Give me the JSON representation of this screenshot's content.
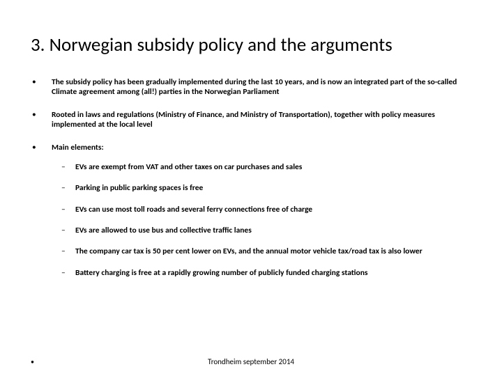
{
  "background_color": "#ffffff",
  "text_color": "#000000",
  "font_family": "Calibri, Arial, sans-serif",
  "title": {
    "text": "3. Norwegian subsidy policy and the arguments",
    "fontsize": 27,
    "weight": 400
  },
  "bullets": {
    "marker": "•",
    "fontsize": 11.5,
    "weight": 700,
    "items": [
      {
        "text": "The subsidy policy has been gradually implemented during the last 10 years, and is now an integrated part of the so-called Climate agreement among (all!) parties in the Norwegian Parliament"
      },
      {
        "text": "Rooted in laws and regulations (Ministry of Finance, and Ministry of Transportation), together with policy measures implemented at the local level"
      },
      {
        "text": "Main elements:",
        "sub": {
          "marker": "–",
          "items": [
            {
              "text": "EVs are exempt from VAT and other taxes on car purchases and sales"
            },
            {
              "text": "Parking in public parking spaces is free"
            },
            {
              "text": "EVs can use most toll roads and several ferry connections free of charge"
            },
            {
              "text": "EVs are allowed to use bus and collective traffic lanes"
            },
            {
              "text": "The company car tax is 50 per cent lower on EVs, and the annual motor vehicle tax/road tax is also lower"
            },
            {
              "text": "Battery charging is free at a rapidly growing number of publicly funded charging stations"
            }
          ]
        }
      }
    ]
  },
  "footer": {
    "marker": "•",
    "blank": "..",
    "text": "Trondheim september 2014",
    "fontsize": 11
  }
}
